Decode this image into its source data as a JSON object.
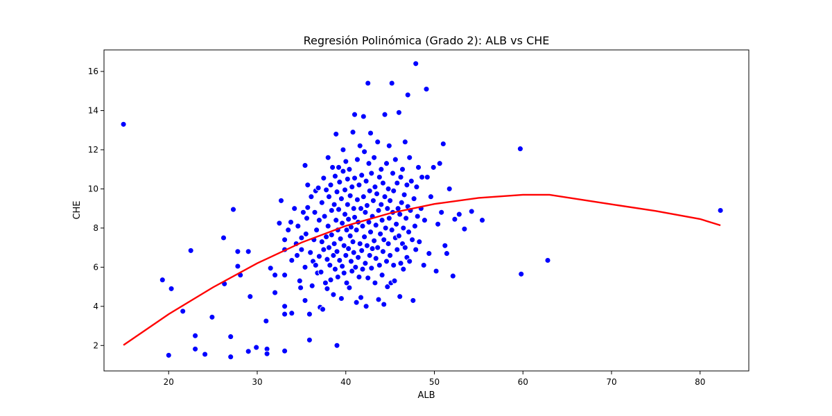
{
  "chart_data": {
    "type": "scatter",
    "title": "Regresión Polinómica (Grado 2): ALB vs CHE",
    "xlabel": "ALB",
    "ylabel": "CHE",
    "xlim": [
      12.7,
      85.5
    ],
    "ylim": [
      0.7,
      17.1
    ],
    "xticks": [
      20,
      30,
      40,
      50,
      60,
      70,
      80
    ],
    "yticks": [
      2,
      4,
      6,
      8,
      10,
      12,
      14,
      16
    ],
    "grid": false,
    "colors": {
      "points": "#0000ff",
      "fit": "#ff0000",
      "point_edge": "#ffffff"
    },
    "series": [
      {
        "type": "scatter",
        "points": [
          [
            14.9,
            13.3
          ],
          [
            19.3,
            5.35
          ],
          [
            20.0,
            1.5
          ],
          [
            20.3,
            4.9
          ],
          [
            21.6,
            3.75
          ],
          [
            22.5,
            6.85
          ],
          [
            23.0,
            2.5
          ],
          [
            23.0,
            1.82
          ],
          [
            24.1,
            1.55
          ],
          [
            24.9,
            3.45
          ],
          [
            26.2,
            7.5
          ],
          [
            26.3,
            5.15
          ],
          [
            27.0,
            2.45
          ],
          [
            27.0,
            1.42
          ],
          [
            27.3,
            8.95
          ],
          [
            27.8,
            6.8
          ],
          [
            27.8,
            6.05
          ],
          [
            28.1,
            5.6
          ],
          [
            29.0,
            6.8
          ],
          [
            29.2,
            4.5
          ],
          [
            29.0,
            1.7
          ],
          [
            29.9,
            1.9
          ],
          [
            31.0,
            3.25
          ],
          [
            31.1,
            1.82
          ],
          [
            31.1,
            1.58
          ],
          [
            31.5,
            5.95
          ],
          [
            32.0,
            4.7
          ],
          [
            32.0,
            5.6
          ],
          [
            32.5,
            8.25
          ],
          [
            32.7,
            9.4
          ],
          [
            33.1,
            7.4
          ],
          [
            33.1,
            6.9
          ],
          [
            33.1,
            3.6
          ],
          [
            33.1,
            4.0
          ],
          [
            33.1,
            1.72
          ],
          [
            33.1,
            5.6
          ],
          [
            33.5,
            7.9
          ],
          [
            33.8,
            8.3
          ],
          [
            33.9,
            3.65
          ],
          [
            33.9,
            6.35
          ],
          [
            34.2,
            9.0
          ],
          [
            34.4,
            7.2
          ],
          [
            34.5,
            6.6
          ],
          [
            34.6,
            8.1
          ],
          [
            34.8,
            5.3
          ],
          [
            34.9,
            4.95
          ],
          [
            35.0,
            7.5
          ],
          [
            35.0,
            6.9
          ],
          [
            35.2,
            8.8
          ],
          [
            35.4,
            11.2
          ],
          [
            35.4,
            6.0
          ],
          [
            35.4,
            4.3
          ],
          [
            35.5,
            7.7
          ],
          [
            35.6,
            8.5
          ],
          [
            35.7,
            9.05
          ],
          [
            35.7,
            10.2
          ],
          [
            35.9,
            3.6
          ],
          [
            35.9,
            2.28
          ],
          [
            36.0,
            6.75
          ],
          [
            36.1,
            9.6
          ],
          [
            36.2,
            5.05
          ],
          [
            36.3,
            6.3
          ],
          [
            36.4,
            7.4
          ],
          [
            36.5,
            8.8
          ],
          [
            36.6,
            9.9
          ],
          [
            36.6,
            6.1
          ],
          [
            36.7,
            7.9
          ],
          [
            36.8,
            5.7
          ],
          [
            36.9,
            10.05
          ],
          [
            37.0,
            8.4
          ],
          [
            37.0,
            6.55
          ],
          [
            37.1,
            3.95
          ],
          [
            37.2,
            5.75
          ],
          [
            37.3,
            9.3
          ],
          [
            37.3,
            7.3
          ],
          [
            37.4,
            3.85
          ],
          [
            37.5,
            10.55
          ],
          [
            37.5,
            6.9
          ],
          [
            37.6,
            8.6
          ],
          [
            37.7,
            5.2
          ],
          [
            37.8,
            7.55
          ],
          [
            37.8,
            9.95
          ],
          [
            37.9,
            6.4
          ],
          [
            37.9,
            4.9
          ],
          [
            38.0,
            11.6
          ],
          [
            38.0,
            8.1
          ],
          [
            38.1,
            7.0
          ],
          [
            38.1,
            9.6
          ],
          [
            38.2,
            6.1
          ],
          [
            38.3,
            5.35
          ],
          [
            38.3,
            10.2
          ],
          [
            38.4,
            7.65
          ],
          [
            38.4,
            8.9
          ],
          [
            38.5,
            11.1
          ],
          [
            38.6,
            6.6
          ],
          [
            38.6,
            4.6
          ],
          [
            38.7,
            9.2
          ],
          [
            38.7,
            7.2
          ],
          [
            38.8,
            5.9
          ],
          [
            38.8,
            10.65
          ],
          [
            38.9,
            12.8
          ],
          [
            38.9,
            8.4
          ],
          [
            39.0,
            2.0
          ],
          [
            39.0,
            6.8
          ],
          [
            39.0,
            9.85
          ],
          [
            39.1,
            7.9
          ],
          [
            39.1,
            5.5
          ],
          [
            39.2,
            11.1
          ],
          [
            39.2,
            8.95
          ],
          [
            39.3,
            6.35
          ],
          [
            39.3,
            10.35
          ],
          [
            39.4,
            7.45
          ],
          [
            39.5,
            4.4
          ],
          [
            39.5,
            9.5
          ],
          [
            39.6,
            8.25
          ],
          [
            39.6,
            6.05
          ],
          [
            39.7,
            12.0
          ],
          [
            39.7,
            10.9
          ],
          [
            39.8,
            7.1
          ],
          [
            39.8,
            5.7
          ],
          [
            39.9,
            8.7
          ],
          [
            39.9,
            9.95
          ],
          [
            40.0,
            6.6
          ],
          [
            40.0,
            11.4
          ],
          [
            40.1,
            7.9
          ],
          [
            40.1,
            5.2
          ],
          [
            40.2,
            9.2
          ],
          [
            40.2,
            10.5
          ],
          [
            40.3,
            6.95
          ],
          [
            40.3,
            8.45
          ],
          [
            40.4,
            4.95
          ],
          [
            40.4,
            11.0
          ],
          [
            40.5,
            7.6
          ],
          [
            40.5,
            9.65
          ],
          [
            40.6,
            6.3
          ],
          [
            40.6,
            8.05
          ],
          [
            40.7,
            10.1
          ],
          [
            40.7,
            5.8
          ],
          [
            40.8,
            12.9
          ],
          [
            40.8,
            7.3
          ],
          [
            40.9,
            9.0
          ],
          [
            40.9,
            6.75
          ],
          [
            41.0,
            13.8
          ],
          [
            41.0,
            8.55
          ],
          [
            41.0,
            10.55
          ],
          [
            41.1,
            6.0
          ],
          [
            41.2,
            4.2
          ],
          [
            41.2,
            7.9
          ],
          [
            41.3,
            9.45
          ],
          [
            41.3,
            11.5
          ],
          [
            41.4,
            6.5
          ],
          [
            41.4,
            8.3
          ],
          [
            41.5,
            10.2
          ],
          [
            41.5,
            5.5
          ],
          [
            41.6,
            7.2
          ],
          [
            41.6,
            12.2
          ],
          [
            41.7,
            9.0
          ],
          [
            41.7,
            4.45
          ],
          [
            41.8,
            6.85
          ],
          [
            41.8,
            10.7
          ],
          [
            41.9,
            8.1
          ],
          [
            41.9,
            5.9
          ],
          [
            42.0,
            13.7
          ],
          [
            42.0,
            9.6
          ],
          [
            42.1,
            7.55
          ],
          [
            42.1,
            11.9
          ],
          [
            42.2,
            6.2
          ],
          [
            42.2,
            8.8
          ],
          [
            42.3,
            10.4
          ],
          [
            42.3,
            4.0
          ],
          [
            42.4,
            7.1
          ],
          [
            42.4,
            9.15
          ],
          [
            42.5,
            15.4
          ],
          [
            42.5,
            5.45
          ],
          [
            42.6,
            8.3
          ],
          [
            42.6,
            11.3
          ],
          [
            42.7,
            6.6
          ],
          [
            42.7,
            9.9
          ],
          [
            42.8,
            12.85
          ],
          [
            42.8,
            7.8
          ],
          [
            42.9,
            5.95
          ],
          [
            42.9,
            10.8
          ],
          [
            43.0,
            8.6
          ],
          [
            43.0,
            6.95
          ],
          [
            43.1,
            9.4
          ],
          [
            43.2,
            11.6
          ],
          [
            43.2,
            7.35
          ],
          [
            43.3,
            5.2
          ],
          [
            43.3,
            10.1
          ],
          [
            43.4,
            8.15
          ],
          [
            43.4,
            6.45
          ],
          [
            43.5,
            9.75
          ],
          [
            43.6,
            12.4
          ],
          [
            43.6,
            7.0
          ],
          [
            43.7,
            4.35
          ],
          [
            43.7,
            8.9
          ],
          [
            43.8,
            10.6
          ],
          [
            43.8,
            6.1
          ],
          [
            43.9,
            7.7
          ],
          [
            44.0,
            11.0
          ],
          [
            44.0,
            9.2
          ],
          [
            44.1,
            5.6
          ],
          [
            44.1,
            8.4
          ],
          [
            44.2,
            6.8
          ],
          [
            44.2,
            10.3
          ],
          [
            44.3,
            4.1
          ],
          [
            44.3,
            7.4
          ],
          [
            44.4,
            9.6
          ],
          [
            44.4,
            13.8
          ],
          [
            44.5,
            8.0
          ],
          [
            44.6,
            6.3
          ],
          [
            44.6,
            11.3
          ],
          [
            44.7,
            9.0
          ],
          [
            44.7,
            5.0
          ],
          [
            44.8,
            7.2
          ],
          [
            44.8,
            10.0
          ],
          [
            44.9,
            12.2
          ],
          [
            44.9,
            8.5
          ],
          [
            45.0,
            6.6
          ],
          [
            45.0,
            9.4
          ],
          [
            45.1,
            5.2
          ],
          [
            45.2,
            15.4
          ],
          [
            45.2,
            7.9
          ],
          [
            45.3,
            10.8
          ],
          [
            45.3,
            8.8
          ],
          [
            45.4,
            6.1
          ],
          [
            45.4,
            9.9
          ],
          [
            45.5,
            5.3
          ],
          [
            45.6,
            7.5
          ],
          [
            45.6,
            11.5
          ],
          [
            45.7,
            8.2
          ],
          [
            45.8,
            6.9
          ],
          [
            45.8,
            10.3
          ],
          [
            45.9,
            9.0
          ],
          [
            46.0,
            13.9
          ],
          [
            46.0,
            7.6
          ],
          [
            46.1,
            4.5
          ],
          [
            46.1,
            8.7
          ],
          [
            46.2,
            10.6
          ],
          [
            46.2,
            6.2
          ],
          [
            46.3,
            9.3
          ],
          [
            46.4,
            7.2
          ],
          [
            46.4,
            11.0
          ],
          [
            46.5,
            8.0
          ],
          [
            46.5,
            5.9
          ],
          [
            46.6,
            9.7
          ],
          [
            46.7,
            12.4
          ],
          [
            46.7,
            7.0
          ],
          [
            46.8,
            8.5
          ],
          [
            46.9,
            6.5
          ],
          [
            46.9,
            10.2
          ],
          [
            47.0,
            9.1
          ],
          [
            47.0,
            14.8
          ],
          [
            47.1,
            7.8
          ],
          [
            47.2,
            11.6
          ],
          [
            47.2,
            6.3
          ],
          [
            47.3,
            8.9
          ],
          [
            47.4,
            10.4
          ],
          [
            47.5,
            7.4
          ],
          [
            47.6,
            4.3
          ],
          [
            47.7,
            9.5
          ],
          [
            47.8,
            8.1
          ],
          [
            47.9,
            16.4
          ],
          [
            47.9,
            6.9
          ],
          [
            48.0,
            10.1
          ],
          [
            48.1,
            8.6
          ],
          [
            48.2,
            11.1
          ],
          [
            48.3,
            7.3
          ],
          [
            48.5,
            9.0
          ],
          [
            48.6,
            10.6
          ],
          [
            48.8,
            6.1
          ],
          [
            48.9,
            8.4
          ],
          [
            49.1,
            15.1
          ],
          [
            49.2,
            10.6
          ],
          [
            49.4,
            6.7
          ],
          [
            49.6,
            9.6
          ],
          [
            49.9,
            11.1
          ],
          [
            50.2,
            5.8
          ],
          [
            50.4,
            8.2
          ],
          [
            50.6,
            11.3
          ],
          [
            50.8,
            8.8
          ],
          [
            51.0,
            12.3
          ],
          [
            51.2,
            7.1
          ],
          [
            51.4,
            6.7
          ],
          [
            51.7,
            10.0
          ],
          [
            52.1,
            5.55
          ],
          [
            52.3,
            8.45
          ],
          [
            52.8,
            8.7
          ],
          [
            53.4,
            7.95
          ],
          [
            54.2,
            8.85
          ],
          [
            55.4,
            8.4
          ],
          [
            59.7,
            12.05
          ],
          [
            59.8,
            5.65
          ],
          [
            62.8,
            6.35
          ],
          [
            82.3,
            8.9
          ]
        ]
      },
      {
        "type": "line",
        "x": [
          14.9,
          20,
          25,
          30,
          35,
          40,
          45,
          50,
          55,
          60,
          63,
          70,
          75,
          80,
          82.3
        ],
        "y": [
          2.02,
          3.6,
          4.97,
          6.2,
          7.26,
          8.11,
          8.76,
          9.23,
          9.54,
          9.7,
          9.7,
          9.21,
          8.87,
          8.46,
          8.14
        ]
      }
    ]
  }
}
